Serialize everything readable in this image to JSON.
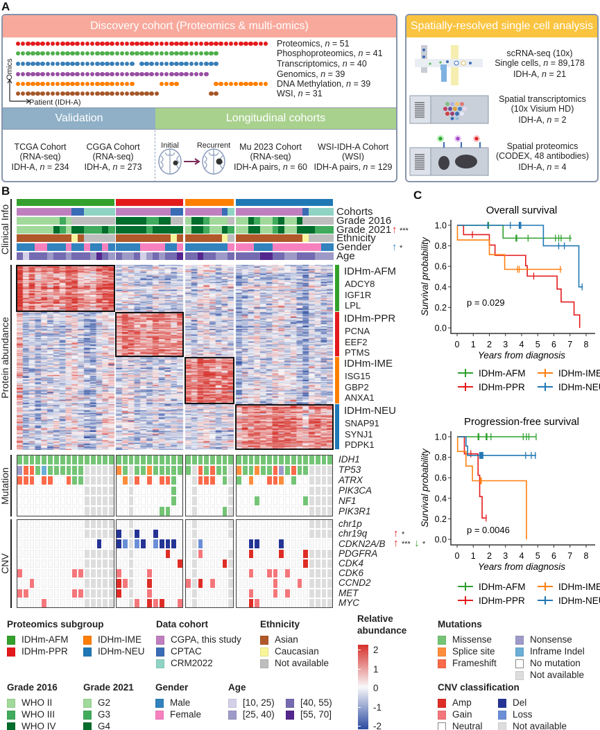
{
  "panel_labels": {
    "a": "A",
    "b": "B",
    "c": "C"
  },
  "discovery": {
    "title": "Discovery cohort (Proteomics & multi-omics)",
    "axis_y": "Omics",
    "axis_x": "Patient (IDH-A)",
    "omics": [
      {
        "pre": "Proteomics, ",
        "n": "n",
        "post": " = 51",
        "color": "#e41a1c",
        "runs": [
          [
            51,
            1
          ]
        ]
      },
      {
        "pre": "Phosphoproteomics, ",
        "n": "n",
        "post": " = 41",
        "color": "#4daf4a",
        "runs": [
          [
            41,
            1
          ],
          [
            10,
            0
          ]
        ]
      },
      {
        "pre": "Transcriptomics, ",
        "n": "n",
        "post": " = 40",
        "color": "#377eb8",
        "runs": [
          [
            24,
            1
          ],
          [
            1,
            0
          ],
          [
            16,
            1
          ],
          [
            10,
            0
          ]
        ]
      },
      {
        "pre": "Genomics, ",
        "n": "n",
        "post": " = 39",
        "color": "#984ea3",
        "runs": [
          [
            39,
            1
          ],
          [
            12,
            0
          ]
        ]
      },
      {
        "pre": "DNA Methylation, ",
        "n": "n",
        "post": " = 39",
        "color": "#ff7f00",
        "runs": [
          [
            24,
            1
          ],
          [
            5,
            0
          ],
          [
            4,
            1
          ],
          [
            7,
            0
          ],
          [
            11,
            1
          ]
        ]
      },
      {
        "pre": "WSI, ",
        "n": "n",
        "post": " = 31",
        "color": "#a65628",
        "runs": [
          [
            29,
            1
          ],
          [
            10,
            0
          ],
          [
            2,
            1
          ],
          [
            10,
            0
          ]
        ]
      }
    ]
  },
  "validation": {
    "title": "Validation",
    "cohorts": [
      {
        "l1": "TCGA Cohort",
        "l2": "(RNA-seq)",
        "l3": {
          "pre": "IDH-A, ",
          "n": "n",
          "post": " = 234"
        }
      },
      {
        "l1": "CGGA Cohort",
        "l2": "(RNA-seq)",
        "l3": {
          "pre": "IDH-A, ",
          "n": "n",
          "post": " = 273"
        }
      }
    ]
  },
  "longitudinal": {
    "title": "Longitudinal cohorts",
    "initial": "Initial",
    "recurrent": "Recurrent",
    "cohorts": [
      {
        "l1": "Mu 2023 Cohort",
        "l2": "(RNA-seq)",
        "l3": {
          "pre": "IDH-A pairs, ",
          "n": "n",
          "post": " = 60"
        }
      },
      {
        "l1": "WSI-IDH-A Cohort",
        "l2": "(WSI)",
        "l3": {
          "pre": "IDH-A pairs, ",
          "n": "n",
          "post": " = 129"
        }
      }
    ]
  },
  "spatial": {
    "title": "Spatially-resolved single cell analysis",
    "items": [
      {
        "l1": "scRNA-seq (10x)",
        "l2": {
          "pre": "Single cells, ",
          "n": "n",
          "post": " = 89,178"
        },
        "l3": {
          "pre": "IDH-A, ",
          "n": "n",
          "post": " = 21"
        }
      },
      {
        "l1": "Spatial transcriptomics",
        "l2": {
          "pre": "(10x Visium HD)",
          "n": "",
          "post": ""
        },
        "l3": {
          "pre": "IDH-A, ",
          "n": "n",
          "post": " = 2"
        }
      },
      {
        "l1": "Spatial proteomics",
        "l2": {
          "pre": "(CODEX, 48 antibodies)",
          "n": "",
          "post": ""
        },
        "l3": {
          "pre": "IDH-A, ",
          "n": "n",
          "post": " = 4"
        }
      }
    ]
  },
  "panel_b": {
    "section_labels": {
      "clinical": "Clinical Info",
      "protein": "Protein abundance",
      "mutation": "Mutation",
      "cnv": "CNV"
    },
    "group_sizes": [
      16,
      11,
      8,
      16
    ],
    "group_colors": [
      "#33a02c",
      "#e31a1c",
      "#ff7f00",
      "#1f78b4"
    ],
    "na_color": "#bdbdbd",
    "clinical_rows": [
      {
        "label": "Cohorts",
        "legend": "cohort",
        "values": [
          "PPPPPPPPPBBTTTTT",
          "PPPPPPPPPBB",
          "PPPPPPBT",
          "PPPPPPPPPPPBTTTT"
        ]
      },
      {
        "label": "Grade 2016",
        "legend": "grade2016",
        "values": [
          "222222232xxxxxxx",
          "444443344xx",
          "2443222x",
          "22432234224xxxxx"
        ]
      },
      {
        "label": "Grade 2021",
        "legend": "grade2021",
        "values": [
          "2222224324433343",
          "44444344444",
          "24432243",
          "2244223422444333"
        ],
        "sig": [
          {
            "arrow": "↑",
            "color": "#e41a1c",
            "stars": "***"
          }
        ]
      },
      {
        "label": "Ethnicity",
        "legend": "ethnicity",
        "values": [
          "AAAAAAAAACAxxxxx",
          "AAAAAAAAACA",
          "AAAAAACx",
          "AAAAAAAAAAACxxxx"
        ]
      },
      {
        "label": "Gender",
        "legend": "gender",
        "values": [
          "MMMFFMMMFMMFMMFM",
          "MMMMFFFFMMF",
          "MMMMMMMF",
          "FFFMMMFFFFFFFFMM"
        ],
        "sig": [
          {
            "arrow": "↑",
            "color": "#3182bd",
            "stars": "*"
          }
        ]
      },
      {
        "label": "Age",
        "legend": "age",
        "values": [
          "3133323323332432",
          "32231232334",
          "33433223",
          "3333443322333222"
        ]
      }
    ],
    "protein_groups": [
      {
        "label": "IDHm-AFM",
        "genes": [
          "ADCY8",
          "IGF1R",
          "LPL"
        ]
      },
      {
        "label": "IDHm-PPR",
        "genes": [
          "PCNA",
          "EEF2",
          "PTMS"
        ]
      },
      {
        "label": "IDHm-IME",
        "genes": [
          "ISG15",
          "GBP2",
          "ANXA1"
        ]
      },
      {
        "label": "IDHm-NEU",
        "genes": [
          "SNAP91",
          "SYNJ1",
          "PDPK1"
        ]
      }
    ],
    "mutation_rows": [
      {
        "gene": "IDH1",
        "values": [
          "MMMMMMMMMMMMMMMM",
          "MMMMMMMMMMM",
          "MMMMMMMM",
          "MMMMMMMMMMMMMMMM"
        ]
      },
      {
        "gene": "TP53",
        "values": [
          "NFFMIMMMMMMxxxxx",
          "SMxMMSMMMMM",
          "MxFMFMMx",
          "SMMSMMFNMFMMxxxx"
        ]
      },
      {
        "gene": "ATRX",
        "values": [
          "FFF.FF..FMMxxxxx",
          ".SxF.F.FFM.",
          ".xFFF.Mx",
          "M.S..FFS.M..xxxx"
        ]
      },
      {
        "gene": "PIK3CA",
        "values": [
          "...........xxxxx",
          "..x......M.",
          ".x.....x",
          "............xxxx"
        ]
      },
      {
        "gene": "NF1",
        "values": [
          "...........xxxxx",
          "..x......M.",
          ".x.....x",
          "...M.......Mxxxx"
        ]
      },
      {
        "gene": "PIK3R1",
        "values": [
          "...........xxxxx",
          "..x....MM..",
          ".x....Mx",
          "............xxxx"
        ]
      }
    ],
    "cnv_rows": [
      {
        "gene": "chr1p",
        "values": [
          "...........xxxxx",
          "..x........",
          ".x.....x",
          "............xxxx"
        ]
      },
      {
        "gene": "chr19q",
        "values": [
          "...........xxxxx",
          "D.xD..D....",
          ".x.....x",
          "............xxxx"
        ],
        "sig": [
          {
            "arrow": "↑",
            "color": "#e41a1c",
            "stars": "*"
          }
        ]
      },
      {
        "gene": "CDKN2A/B",
        "values": [
          ".............D..",
          "DLxLD.LDDD.",
          ".xL.....",
          "..DD...D........"
        ],
        "sig": [
          {
            "arrow": "↑",
            "color": "#e41a1c",
            "stars": "***"
          },
          {
            "arrow": "↓",
            "color": "#33a02c",
            "stars": "*"
          }
        ]
      },
      {
        "gene": "PDGFRA",
        "values": [
          "...........xxxxx",
          "..x.....A..",
          ".xG....x",
          "..A....A...Axxxx"
        ]
      },
      {
        "gene": "CDK4",
        "values": [
          "...........xxxxx",
          "..x.......A",
          ".x....Ax",
          "...........Axxxx"
        ]
      },
      {
        "gene": "CDK6",
        "values": [
          "G........GGxxxxx",
          "G.x..G.....",
          ".x.....x",
          "..G..GG.G...xxxx"
        ]
      },
      {
        "gene": "CCND2",
        "values": [
          "..G........xxxxx",
          "AGx..A.....",
          "GxA.G..x",
          "......G...G.xxxx"
        ]
      },
      {
        "gene": "MET",
        "values": [
          "GG.......GGxxxxx",
          "A.x..G.....",
          ".x.....x",
          "..G...G.G...xxxx"
        ]
      },
      {
        "gene": "MYC",
        "values": [
          "....G......xxxxx",
          "..xG.AGA..G",
          ".x.....x",
          "..AG........xxxx"
        ]
      }
    ]
  },
  "legend": {
    "subgroup": {
      "title": "Proteomics subgroup",
      "items": [
        {
          "label": "IDHm-AFM",
          "color": "#33a02c"
        },
        {
          "label": "IDHm-PPR",
          "color": "#e31a1c"
        },
        {
          "label": "IDHm-IME",
          "color": "#ff7f00"
        },
        {
          "label": "IDHm-NEU",
          "color": "#1f78b4"
        }
      ]
    },
    "cohort": {
      "title": "Data cohort",
      "items": [
        {
          "label": "CGPA, this study",
          "color": "#bf7fbf",
          "code": "P"
        },
        {
          "label": "CPTAC",
          "color": "#3a6bb5",
          "code": "B"
        },
        {
          "label": "CRM2022",
          "color": "#8fd3c3",
          "code": "T"
        }
      ]
    },
    "ethnicity": {
      "title": "Ethnicity",
      "items": [
        {
          "label": "Asian",
          "color": "#b0582a",
          "code": "A"
        },
        {
          "label": "Caucasian",
          "color": "#faf59a",
          "code": "C"
        },
        {
          "label": "Not available",
          "color": "#bdbdbd",
          "code": "x"
        }
      ]
    },
    "abundance": {
      "title1": "Relative",
      "title2": "abundance",
      "ticks": [
        "2",
        "1",
        "0",
        "-1",
        "-2"
      ],
      "range": [
        -2,
        2
      ],
      "low_color": "#2c4ba0",
      "mid_color": "#f8f8fa",
      "high_color": "#d6302a"
    },
    "mutations": {
      "title": "Mutations",
      "items": [
        {
          "label": "Missense",
          "color": "#74c476",
          "code": "M"
        },
        {
          "label": "Splice site",
          "color": "#fd8d3c",
          "code": "S"
        },
        {
          "label": "Frameshift",
          "color": "#fb6a4a",
          "code": "F"
        },
        {
          "label": "Nonsense",
          "color": "#9e9ac8",
          "code": "N"
        },
        {
          "label": "Inframe Indel",
          "color": "#6baed6",
          "code": "I"
        },
        {
          "label": "No mutation",
          "color": "#ffffff",
          "code": "."
        },
        {
          "label": "Not available",
          "color": "#dddddd",
          "code": "x"
        }
      ]
    },
    "grade2016": {
      "title": "Grade 2016",
      "items": [
        {
          "label": "WHO II",
          "color": "#a1d99b",
          "code": "2"
        },
        {
          "label": "WHO III",
          "color": "#41ab5d",
          "code": "3"
        },
        {
          "label": "WHO IV",
          "color": "#006d2c",
          "code": "4"
        }
      ]
    },
    "grade2021": {
      "title": "Grade 2021",
      "items": [
        {
          "label": "G2",
          "color": "#a1d99b",
          "code": "2"
        },
        {
          "label": "G3",
          "color": "#41ab5d",
          "code": "3"
        },
        {
          "label": "G4",
          "color": "#006d2c",
          "code": "4"
        }
      ]
    },
    "gender": {
      "title": "Gender",
      "items": [
        {
          "label": "Male",
          "color": "#3182bd",
          "code": "M"
        },
        {
          "label": "Female",
          "color": "#f781bf",
          "code": "F"
        }
      ]
    },
    "age": {
      "title": "Age",
      "items": [
        {
          "label": "[10, 25)",
          "color": "#d4d0e8",
          "code": "1"
        },
        {
          "label": "[25, 40)",
          "color": "#9e9ac8",
          "code": "2"
        },
        {
          "label": "[40, 55)",
          "color": "#756bb1",
          "code": "3"
        },
        {
          "label": "[55, 70]",
          "color": "#54278f",
          "code": "4"
        }
      ]
    },
    "cnv": {
      "title": "CNV classification",
      "items": [
        {
          "label": "Amp",
          "color": "#de2d26",
          "code": "A"
        },
        {
          "label": "Gain",
          "color": "#f4777b",
          "code": "G"
        },
        {
          "label": "Neutral",
          "color": "#ffffff",
          "code": "."
        },
        {
          "label": "Del",
          "color": "#253494",
          "code": "D"
        },
        {
          "label": "Loss",
          "color": "#6a8fd6",
          "code": "L"
        },
        {
          "label": "Not available",
          "color": "#dddddd",
          "code": "x"
        }
      ]
    }
  },
  "chart_data": [
    {
      "type": "line",
      "title": "Overall survival",
      "xlabel": "Years from diagnosis",
      "ylabel": "Survival probability",
      "xlim": [
        0,
        8
      ],
      "ylim": [
        0,
        1
      ],
      "xticks": [
        "0",
        "1",
        "2",
        "3",
        "4",
        "5",
        "6",
        "7",
        "8"
      ],
      "yticks": [
        "0.0",
        "0.2",
        "0.4",
        "0.6",
        "0.8",
        "1.0"
      ],
      "annotation": "p = 0.029",
      "legend_position": "bottom",
      "series": [
        {
          "name": "IDHm-AFM",
          "color": "#2ca02c",
          "steps": [
            [
              0,
              1
            ],
            [
              2.85,
              0.875
            ]
          ],
          "end": 7.1,
          "censor": [
            1.9,
            1.95,
            3.65,
            3.7,
            4.4,
            6.1,
            6.3,
            6.45,
            7.0
          ]
        },
        {
          "name": "IDHm-PPR",
          "color": "#e31a1c",
          "steps": [
            [
              0,
              1
            ],
            [
              0.4,
              0.909
            ],
            [
              2.0,
              0.808
            ],
            [
              2.35,
              0.707
            ],
            [
              4.25,
              0.606
            ],
            [
              4.35,
              0.505
            ],
            [
              6.2,
              0.379
            ],
            [
              6.45,
              0.253
            ],
            [
              7.25,
              0.126
            ],
            [
              7.6,
              0
            ]
          ],
          "end": 7.6,
          "censor": [
            0.95,
            4.75
          ]
        },
        {
          "name": "IDHm-IME",
          "color": "#ff7f0e",
          "steps": [
            [
              0,
              1
            ],
            [
              0.02,
              0.857
            ],
            [
              2.0,
              0.714
            ],
            [
              2.95,
              0.571
            ]
          ],
          "end": 6.5,
          "censor": [
            3.75,
            3.85,
            6.4
          ]
        },
        {
          "name": "IDHm-NEU",
          "color": "#1f77b4",
          "steps": [
            [
              0,
              1
            ],
            [
              5.35,
              0.8
            ],
            [
              7.55,
              0.4
            ]
          ],
          "end": 7.8,
          "censor": [
            1.9,
            3.3,
            3.85,
            3.9,
            3.95,
            6.3,
            6.65,
            7.75
          ]
        }
      ]
    },
    {
      "type": "line",
      "title": "Progression-free survival",
      "xlabel": "Years from diagnosis",
      "ylabel": "Survival probability",
      "xlim": [
        0,
        8
      ],
      "ylim": [
        0,
        1
      ],
      "xticks": [
        "0",
        "1",
        "2",
        "3",
        "4",
        "5",
        "6",
        "7",
        "8"
      ],
      "yticks": [
        "0.0",
        "0.2",
        "0.4",
        "0.6",
        "0.8",
        "1.0"
      ],
      "annotation": "p = 0.0046",
      "legend_position": "bottom",
      "series": [
        {
          "name": "IDHm-AFM",
          "color": "#2ca02c",
          "steps": [
            [
              0,
              1
            ]
          ],
          "end": 4.9,
          "censor": [
            1.3,
            1.35,
            1.8,
            1.85,
            2.1,
            4.1,
            4.3,
            4.45,
            4.9
          ]
        },
        {
          "name": "IDHm-PPR",
          "color": "#e31a1c",
          "steps": [
            [
              0,
              1
            ],
            [
              0.45,
              0.833
            ],
            [
              1.3,
              0.625
            ],
            [
              1.4,
              0.417
            ],
            [
              1.55,
              0.208
            ]
          ],
          "end": 1.8,
          "censor": [
            0.85,
            1.8
          ]
        },
        {
          "name": "IDHm-IME",
          "color": "#ff7f0e",
          "steps": [
            [
              0,
              1
            ],
            [
              0.03,
              0.857
            ],
            [
              0.55,
              0.714
            ],
            [
              0.95,
              0.571
            ],
            [
              4.3,
              0
            ]
          ],
          "end": 4.3,
          "censor": [
            1.45,
            1.5
          ]
        },
        {
          "name": "IDHm-NEU",
          "color": "#1f77b4",
          "steps": [
            [
              0,
              1
            ],
            [
              0.55,
              0.909
            ],
            [
              0.65,
              0.818
            ]
          ],
          "end": 4.9,
          "censor": [
            1.4,
            1.45,
            1.5,
            1.55,
            1.6,
            4.25,
            4.6,
            4.85
          ]
        }
      ]
    }
  ]
}
